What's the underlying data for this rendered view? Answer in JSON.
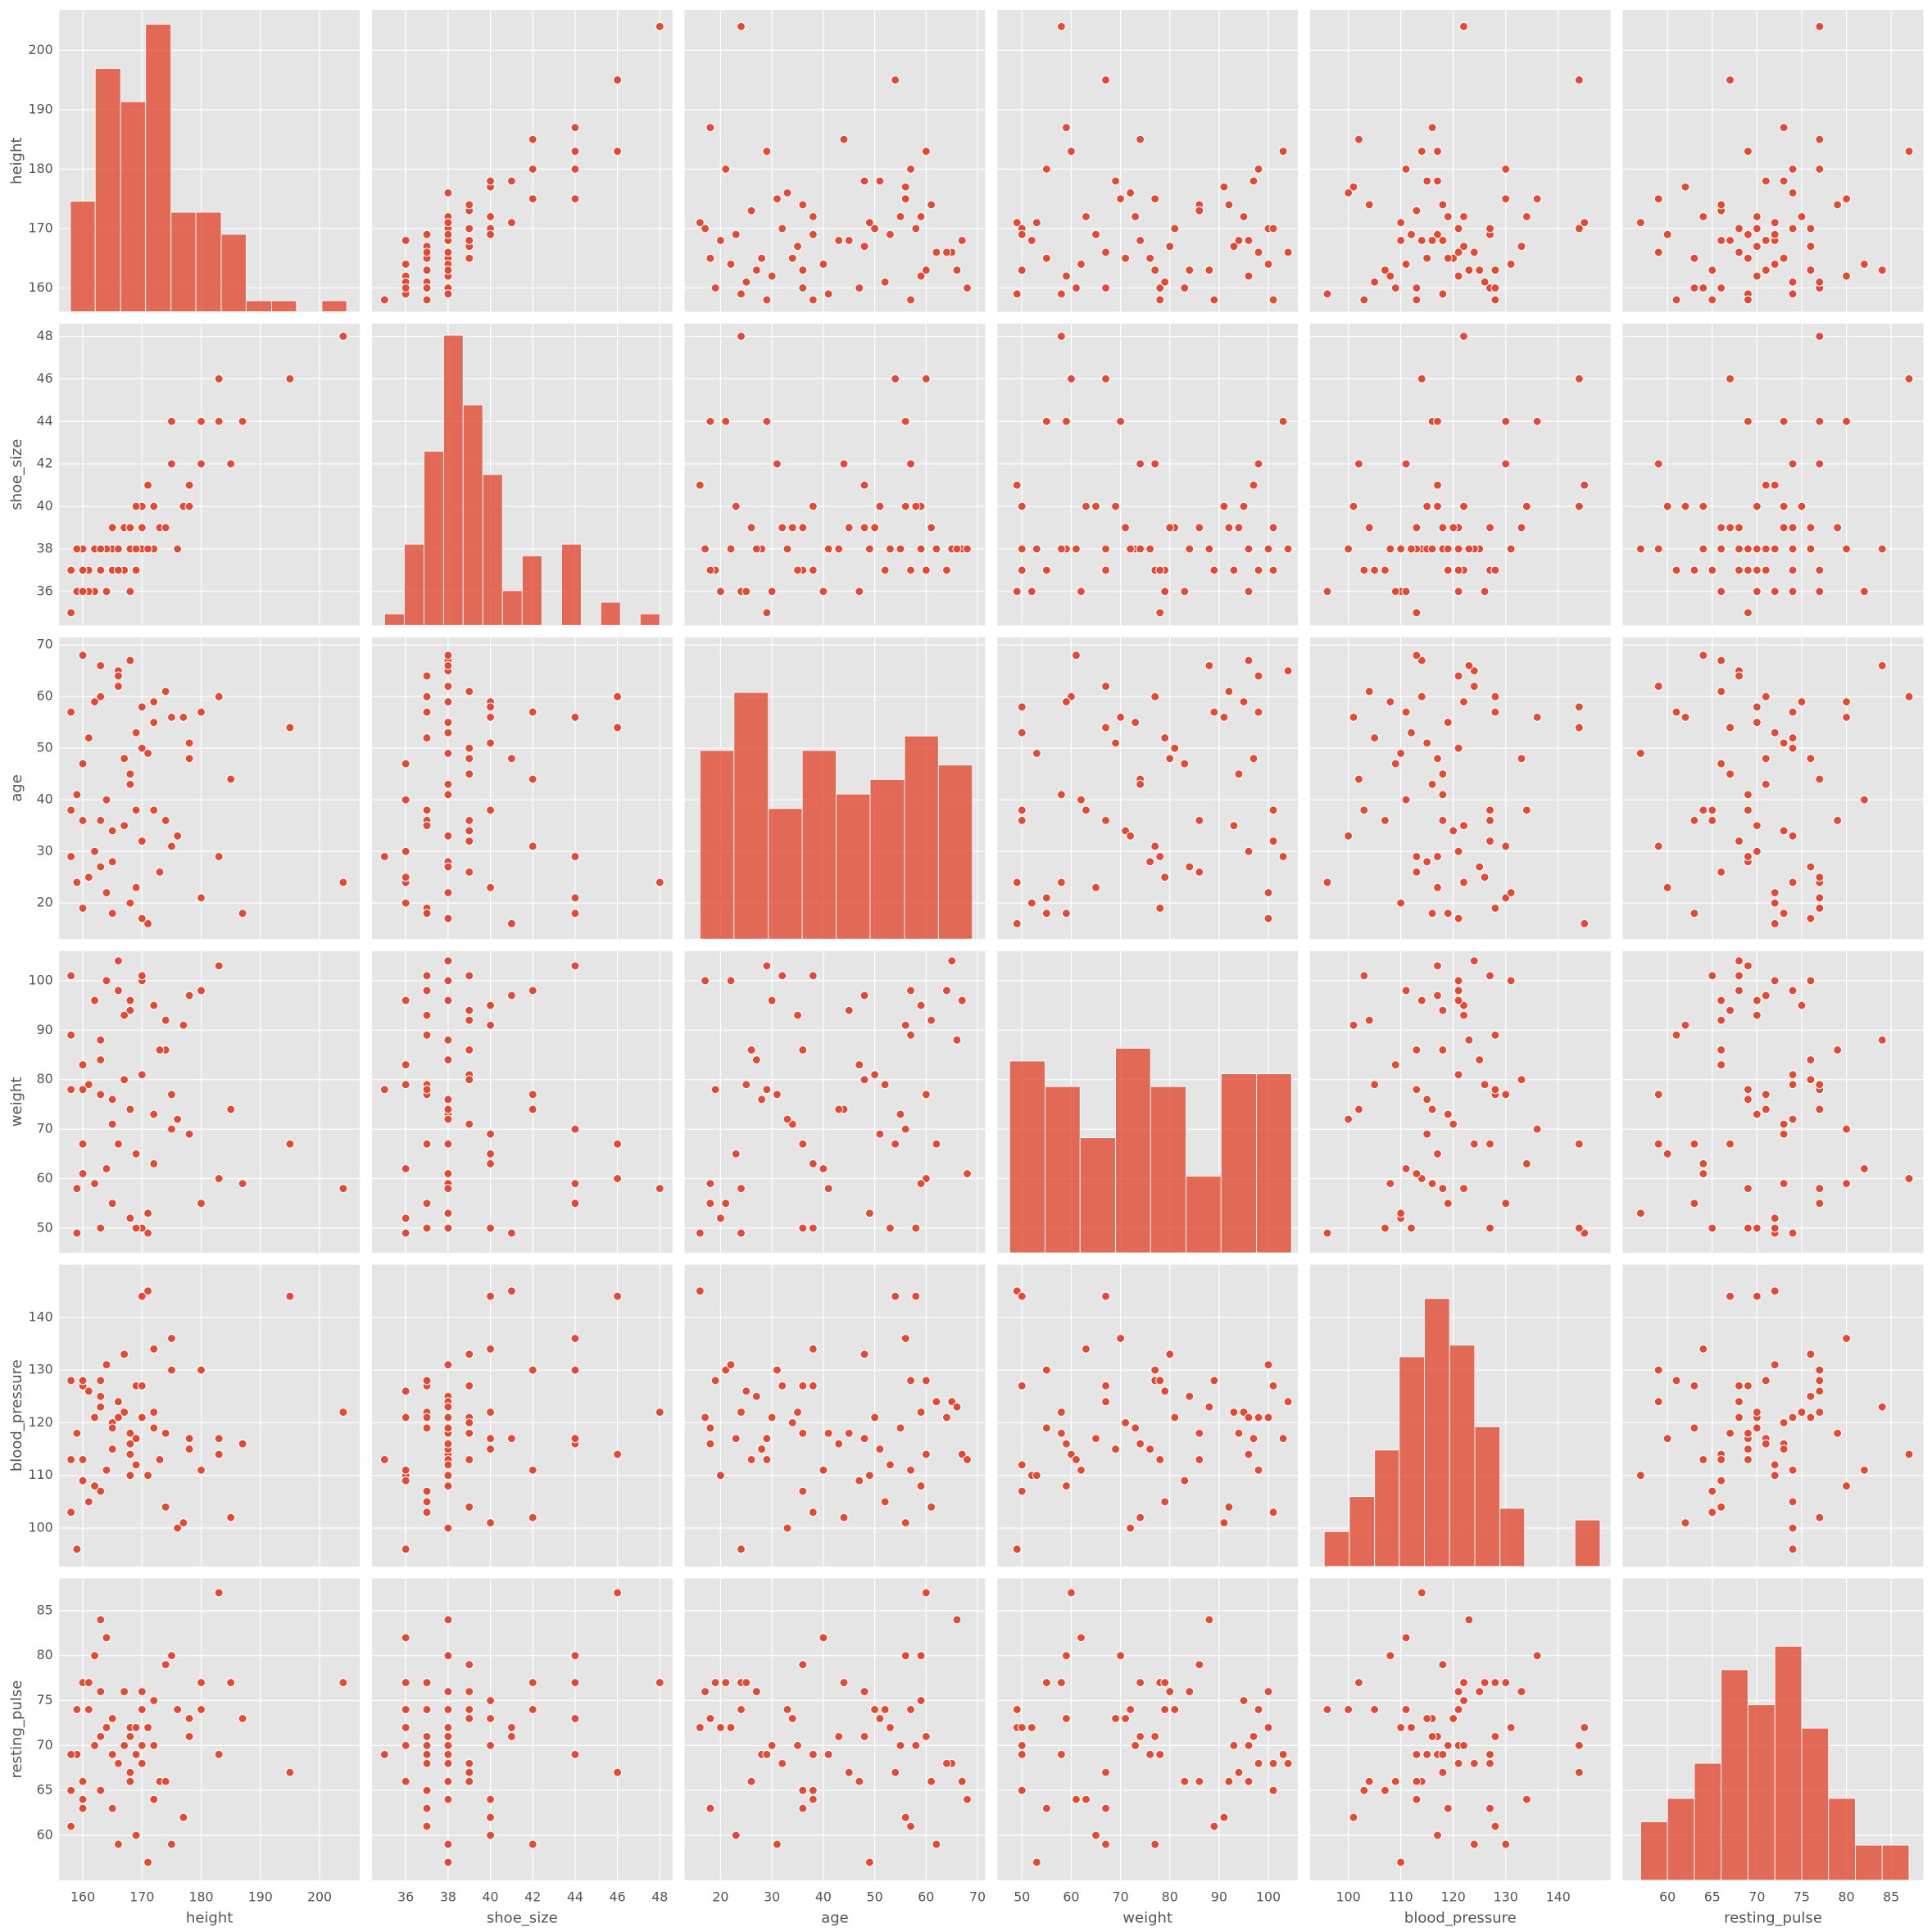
{
  "chart_data": {
    "type": "pairplot",
    "color": "#e24a33",
    "grid": true,
    "variables": [
      {
        "name": "height",
        "lim": [
          156,
          206.8
        ],
        "ticks": [
          160,
          170,
          180,
          190,
          200
        ],
        "values": [
          204,
          195,
          183,
          187,
          185,
          183,
          180,
          180,
          178,
          177,
          175,
          174,
          172,
          171,
          170,
          170,
          170,
          169,
          168,
          168,
          167,
          166,
          165,
          165,
          164,
          163,
          163,
          163,
          162,
          162,
          161,
          160,
          160,
          160,
          159,
          158,
          159,
          158,
          158,
          172,
          173,
          176,
          168,
          166,
          164,
          169,
          171,
          167,
          178,
          170,
          163,
          165,
          174,
          168,
          161,
          169,
          172,
          166,
          160,
          175
        ],
        "hist": {
          "bins": [
            157.9,
            162.1,
            166.4,
            170.6,
            174.9,
            179.1,
            183.4,
            187.6,
            191.9,
            196.1,
            200.4,
            204.6
          ],
          "counts": [
            10,
            22,
            19,
            26,
            9,
            9,
            7,
            1,
            1,
            0,
            1
          ],
          "ylim": [
            0,
            27.3
          ]
        }
      },
      {
        "name": "shoe_size",
        "lim": [
          34.4,
          48.6
        ],
        "ticks": [
          36,
          38,
          40,
          42,
          44,
          46,
          48
        ],
        "values": [
          48,
          46,
          46,
          44,
          42,
          44,
          44,
          42,
          41,
          40,
          44,
          39,
          40,
          41,
          39,
          40,
          38,
          37,
          38,
          36,
          39,
          38,
          38,
          39,
          38,
          37,
          37,
          38,
          38,
          36,
          37,
          37,
          38,
          37,
          38,
          37,
          36,
          35,
          37,
          38,
          39,
          38,
          39,
          38,
          36,
          40,
          38,
          37,
          40,
          39,
          38,
          37,
          39,
          38,
          36,
          38,
          40,
          37,
          36,
          42
        ],
        "hist": {
          "bins": [
            35,
            35.93,
            36.86,
            37.79,
            38.71,
            39.64,
            40.57,
            41.5,
            42.43,
            43.36,
            44.29,
            45.21,
            46.14,
            47.07,
            48
          ],
          "counts": [
            1,
            7,
            15,
            25,
            19,
            13,
            3,
            6,
            0,
            7,
            0,
            2,
            0,
            1
          ],
          "ylim": [
            0,
            26
          ]
        }
      },
      {
        "name": "age",
        "lim": [
          13,
          71.5
        ],
        "ticks": [
          20,
          30,
          40,
          50,
          60,
          70
        ],
        "values": [
          24,
          54,
          60,
          18,
          44,
          29,
          21,
          57,
          48,
          56,
          56,
          36,
          59,
          16,
          50,
          58,
          17,
          38,
          67,
          20,
          48,
          65,
          28,
          34,
          22,
          60,
          36,
          27,
          59,
          30,
          52,
          36,
          68,
          19,
          41,
          57,
          24,
          29,
          38,
          55,
          26,
          33,
          45,
          62,
          40,
          23,
          49,
          35,
          51,
          32,
          66,
          18,
          61,
          43,
          25,
          53,
          38,
          64,
          47,
          31
        ],
        "hist": {
          "bins": [
            16,
            22.6,
            29.3,
            35.9,
            42.5,
            49.1,
            55.8,
            62.4,
            69
          ],
          "counts": [
            13,
            17,
            9,
            13,
            10,
            11,
            14,
            12
          ],
          "ylim": [
            0,
            20.8
          ]
        }
      },
      {
        "name": "weight",
        "lim": [
          45,
          106
        ],
        "ticks": [
          50,
          60,
          70,
          80,
          90,
          100
        ],
        "values": [
          58,
          67,
          60,
          59,
          74,
          103,
          55,
          98,
          97,
          91,
          70,
          86,
          95,
          49,
          81,
          50,
          100,
          50,
          96,
          52,
          80,
          104,
          76,
          71,
          100,
          77,
          50,
          84,
          59,
          96,
          79,
          67,
          61,
          78,
          58,
          89,
          49,
          78,
          101,
          73,
          86,
          72,
          94,
          67,
          62,
          65,
          53,
          93,
          69,
          101,
          88,
          55,
          92,
          74,
          79,
          50,
          63,
          98,
          83,
          77
        ],
        "hist": {
          "bins": [
            47.5,
            54.7,
            61.8,
            69,
            76.1,
            83.3,
            90.4,
            97.6,
            104.7
          ],
          "counts": [
            15,
            13,
            9,
            16,
            13,
            6,
            14,
            14
          ],
          "ylim": [
            0,
            23.6
          ]
        }
      },
      {
        "name": "blood_pressure",
        "lim": [
          92.7,
          150
        ],
        "ticks": [
          100,
          110,
          120,
          130,
          140
        ],
        "values": [
          122,
          144,
          114,
          116,
          102,
          117,
          130,
          111,
          117,
          101,
          136,
          118,
          122,
          145,
          121,
          144,
          121,
          127,
          114,
          110,
          133,
          124,
          115,
          120,
          131,
          128,
          107,
          125,
          108,
          121,
          105,
          127,
          113,
          128,
          118,
          128,
          96,
          113,
          103,
          119,
          113,
          100,
          118,
          124,
          111,
          117,
          110,
          122,
          115,
          127,
          123,
          119,
          104,
          116,
          126,
          112,
          134,
          121,
          109,
          130
        ],
        "hist": {
          "bins": [
            95.4,
            100.2,
            105,
            109.7,
            114.5,
            119.3,
            124.1,
            128.9,
            133.6,
            138.4,
            143.2,
            148
          ],
          "counts": [
            3,
            6,
            10,
            18,
            23,
            19,
            12,
            5,
            0,
            0,
            4
          ],
          "ylim": [
            0,
            25.9
          ]
        }
      },
      {
        "name": "resting_pulse",
        "lim": [
          55,
          88.6
        ],
        "ticks": [
          60,
          65,
          70,
          75,
          80,
          85
        ],
        "values": [
          77,
          67,
          87,
          73,
          77,
          69,
          77,
          74,
          71,
          62,
          80,
          79,
          75,
          72,
          74,
          70,
          76,
          69,
          66,
          72,
          76,
          68,
          69,
          73,
          72,
          71,
          65,
          76,
          80,
          70,
          74,
          63,
          64,
          77,
          69,
          61,
          74,
          69,
          65,
          70,
          66,
          74,
          67,
          59,
          82,
          60,
          57,
          70,
          73,
          68,
          84,
          63,
          66,
          71,
          77,
          72,
          64,
          68,
          66,
          59
        ],
        "hist": {
          "bins": [
            57,
            60,
            63,
            66,
            69,
            72,
            75,
            78,
            81,
            84,
            87
          ],
          "counts": [
            5,
            7,
            10,
            18,
            15,
            20,
            13,
            7,
            3,
            3
          ],
          "ylim": [
            0,
            25.8
          ]
        }
      }
    ]
  }
}
